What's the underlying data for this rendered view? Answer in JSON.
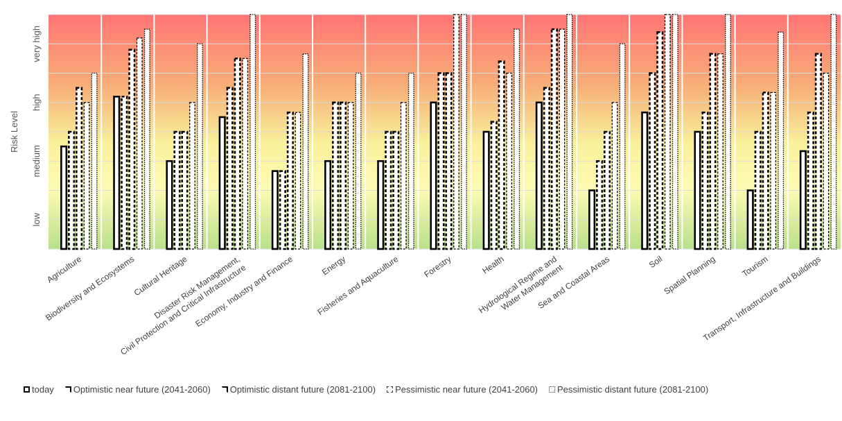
{
  "chart_data": {
    "type": "bar",
    "ylabel": "Risk Level",
    "yticks": [
      {
        "value": 1,
        "label": "low"
      },
      {
        "value": 2,
        "label": "medium"
      },
      {
        "value": 3,
        "label": "high"
      },
      {
        "value": 4,
        "label": "very high"
      }
    ],
    "ylim": [
      0.5,
      4.5
    ],
    "background": "gradient green (low) to yellow (medium) to orange (high) to red (very high)",
    "categories": [
      "Agriculture",
      "Biodiversity and Ecosystems",
      "Cultural Heritage",
      "Disaster Risk Management, Civil Protection and Critical Infrastructure",
      "Economy, Industry and Finance",
      "Energy",
      "Fisheries and Aquaculture",
      "Forestry",
      "Health",
      "Hydrological Regime and Water Management",
      "Sea and Coastal Areas",
      "Soil",
      "Spatial Planning",
      "Tourism",
      "Transport, Infrastructure and Buildings"
    ],
    "category_lines": [
      [
        "Agriculture"
      ],
      [
        "Biodiversity and Ecosystems"
      ],
      [
        "Cultural Heritage"
      ],
      [
        "Disaster Risk Management,",
        "Civil Protection and Critical Infrastructure"
      ],
      [
        "Economy, Industry and Finance"
      ],
      [
        "Energy"
      ],
      [
        "Fisheries and Aquaculture"
      ],
      [
        "Forestry"
      ],
      [
        "Health"
      ],
      [
        "Hydrological Regime and",
        "Water Management"
      ],
      [
        "Sea and Coastal Areas"
      ],
      [
        "Soil"
      ],
      [
        "Spatial Planning"
      ],
      [
        "Tourism"
      ],
      [
        "Transport, Infrastructure and Buildings"
      ]
    ],
    "series": [
      {
        "name": "today",
        "style": "solid",
        "values": [
          2.25,
          3.1,
          2.0,
          2.75,
          1.83,
          2.0,
          2.0,
          3.0,
          2.5,
          3.0,
          1.5,
          2.83,
          2.5,
          1.5,
          2.17
        ]
      },
      {
        "name": "Optimistic near future (2041-2060)",
        "style": "dashed-heavy",
        "values": [
          2.5,
          3.1,
          2.5,
          3.25,
          1.83,
          3.0,
          2.5,
          3.5,
          2.67,
          3.25,
          2.0,
          3.5,
          2.83,
          2.5,
          2.83
        ]
      },
      {
        "name": "Optimistic distant future (2081-2100)",
        "style": "dashed-heavy",
        "values": [
          3.25,
          3.9,
          2.5,
          3.75,
          2.83,
          3.0,
          2.5,
          3.5,
          3.7,
          4.25,
          2.5,
          4.2,
          3.83,
          3.17,
          3.83
        ]
      },
      {
        "name": "Pessimistic near future (2041-2060)",
        "style": "dashed",
        "values": [
          3.0,
          4.1,
          3.0,
          3.75,
          2.83,
          3.0,
          3.0,
          4.5,
          3.5,
          4.25,
          3.0,
          4.5,
          3.83,
          3.17,
          3.5
        ]
      },
      {
        "name": "Pessimistic distant future (2081-2100)",
        "style": "dotted",
        "values": [
          3.5,
          4.25,
          4.0,
          4.5,
          3.83,
          3.5,
          3.5,
          4.5,
          4.25,
          4.5,
          4.0,
          4.5,
          4.5,
          4.2,
          4.5
        ]
      }
    ],
    "legend_position": "bottom",
    "grid": true
  }
}
